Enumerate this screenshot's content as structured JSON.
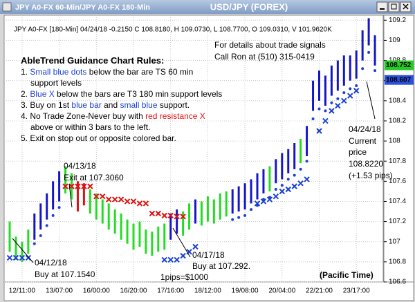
{
  "chart_data": {
    "type": "ohlc",
    "window_title": "JPY A0-FX 60-Min/JPY A0-FX 180-Min",
    "title": "USD/JPY (FOREX)",
    "info_line": "JPY A0-FX [180-Min] 04/24/18  -0.2150 C 108.8180, H 109.0730, L 108.7700, O 109.0310, V 101.9620K",
    "contact": [
      "For details about trade signals",
      "Call Ron at (510) 315-0419"
    ],
    "annotations": {
      "exit": [
        "04/13/18",
        "Exit at 107.3060"
      ],
      "buy1": [
        "04/12/18",
        "Buy at 107.1540"
      ],
      "buy2": [
        "04/17/18",
        "Buy at 107.292."
      ],
      "pips": "1pips=$1000",
      "current": [
        "04/24/18",
        "Current",
        "price",
        "108.8220",
        "(+1.53 pips)"
      ]
    },
    "timezone": "(Pacific Time)",
    "categories": [
      null,
      null,
      "12/11:00",
      null,
      null,
      null,
      null,
      null,
      "13/07:00",
      null,
      null,
      null,
      null,
      null,
      "16/00:00",
      null,
      null,
      null,
      null,
      null,
      "16/20:00",
      null,
      null,
      null,
      null,
      null,
      "17/16:00",
      null,
      null,
      null,
      null,
      null,
      "18/12:00",
      null,
      null,
      null,
      null,
      null,
      "19/08:00",
      null,
      null,
      null,
      null,
      null,
      "20/04:00",
      null,
      null,
      null,
      null,
      null,
      "22/21:00",
      null,
      null,
      null,
      null,
      null,
      "23/17:00",
      null,
      null,
      null
    ],
    "high": [
      107.2,
      107.05,
      107.0,
      107.12,
      107.28,
      107.38,
      107.48,
      107.6,
      107.7,
      107.75,
      107.68,
      107.6,
      107.58,
      107.52,
      107.48,
      107.42,
      107.38,
      107.32,
      107.28,
      107.22,
      107.18,
      107.2,
      107.12,
      107.1,
      107.15,
      107.18,
      107.28,
      107.32,
      107.3,
      107.38,
      107.42,
      107.4,
      107.45,
      107.42,
      107.48,
      107.5,
      107.52,
      107.55,
      107.58,
      107.62,
      107.68,
      107.72,
      107.75,
      107.82,
      107.88,
      107.92,
      107.98,
      108.02,
      108.15,
      108.6,
      108.7,
      108.65,
      108.75,
      108.8,
      108.85,
      108.85,
      108.9,
      109.1,
      109.22,
      109.05
    ],
    "low": [
      106.9,
      106.82,
      106.8,
      106.88,
      107.02,
      107.12,
      107.22,
      107.32,
      107.4,
      107.48,
      107.42,
      107.3,
      107.36,
      107.28,
      107.22,
      107.18,
      107.12,
      107.08,
      107.02,
      106.98,
      106.92,
      106.95,
      106.88,
      106.86,
      106.9,
      106.92,
      107.02,
      107.08,
      107.06,
      107.12,
      107.18,
      107.16,
      107.2,
      107.18,
      107.22,
      107.25,
      107.28,
      107.3,
      107.32,
      107.38,
      107.42,
      107.48,
      107.5,
      107.58,
      107.62,
      107.68,
      107.72,
      107.78,
      107.85,
      108.3,
      108.4,
      108.35,
      108.45,
      108.5,
      108.55,
      108.6,
      108.62,
      108.8,
      108.95,
      108.75
    ],
    "bar_colors": [
      "#22dd22",
      "#22dd22",
      "#22dd22",
      "#22dd22",
      "#1515c8",
      "#1515c8",
      "#1515c8",
      "#1515c8",
      "#1515c8",
      "#22dd22",
      "#22dd22",
      "#e01010",
      "#e01010",
      "#22dd22",
      "#22dd22",
      "#22dd22",
      "#22dd22",
      "#22dd22",
      "#22dd22",
      "#22dd22",
      "#22dd22",
      "#22dd22",
      "#22dd22",
      "#22dd22",
      "#22dd22",
      "#22dd22",
      "#1515c8",
      "#1515c8",
      "#22dd22",
      "#22dd22",
      "#1515c8",
      "#22dd22",
      "#22dd22",
      "#22dd22",
      "#22dd22",
      "#22dd22",
      "#1515c8",
      "#1515c8",
      "#1515c8",
      "#1515c8",
      "#1515c8",
      "#1515c8",
      "#22dd22",
      "#1515c8",
      "#1515c8",
      "#1515c8",
      "#1515c8",
      "#22dd22",
      "#1515c8",
      "#1515c8",
      "#1515c8",
      "#1515c8",
      "#1515c8",
      "#1515c8",
      "#1515c8",
      "#1515c8",
      "#1515c8",
      "#1515c8",
      "#1515c8",
      "#1515c8"
    ],
    "markers": [
      {
        "shape": "dot",
        "color": "#1a3fd6",
        "values": [
          null,
          null,
          null,
          null,
          106.98,
          107.06,
          107.16,
          107.26,
          107.34,
          null,
          null,
          null,
          null,
          null,
          null,
          null,
          null,
          null,
          null,
          null,
          null,
          null,
          null,
          null,
          null,
          null,
          null,
          null,
          null,
          null,
          null,
          null,
          null,
          null,
          null,
          null,
          107.22,
          107.24,
          107.26,
          107.32,
          107.36,
          107.42,
          107.44,
          107.52,
          107.56,
          107.62,
          107.66,
          107.72,
          107.8,
          108.22,
          108.32,
          108.3,
          108.38,
          108.42,
          108.48,
          108.52,
          108.55,
          108.72,
          108.88,
          108.7
        ]
      },
      {
        "shape": "x",
        "color": "#1a3fd6",
        "values": [
          106.84,
          106.84,
          106.84,
          106.84,
          null,
          null,
          null,
          null,
          null,
          null,
          null,
          null,
          null,
          null,
          null,
          null,
          null,
          null,
          null,
          null,
          null,
          null,
          null,
          null,
          null,
          106.82,
          106.82,
          106.82,
          106.86,
          106.9,
          106.95,
          null,
          null,
          null,
          null,
          null,
          null,
          null,
          null,
          null,
          107.38,
          107.4,
          107.42,
          107.45,
          107.5,
          107.52,
          107.55,
          107.58,
          107.62,
          null,
          108.1,
          108.2,
          108.3,
          108.35,
          108.4,
          108.45,
          108.5,
          null,
          null,
          null
        ]
      },
      {
        "shape": "x",
        "color": "#e01010",
        "values": [
          null,
          null,
          null,
          null,
          null,
          null,
          null,
          null,
          null,
          107.55,
          107.55,
          107.55,
          107.55,
          107.55,
          107.45,
          107.45,
          107.42,
          107.42,
          107.42,
          107.4,
          107.4,
          107.38,
          107.38,
          107.28,
          107.28,
          107.26,
          107.26,
          107.25,
          107.25,
          null,
          null,
          null,
          null,
          null,
          null,
          null,
          null,
          null,
          null,
          null,
          null,
          null,
          null,
          null,
          null,
          null,
          null,
          null,
          null,
          null,
          null,
          null,
          null,
          null,
          null,
          null,
          null,
          null,
          null,
          null
        ]
      }
    ],
    "price_tags": [
      {
        "value": 108.752,
        "color": "#22cc22"
      },
      {
        "value": 108.607,
        "color": "#2a4fd8"
      }
    ],
    "ylim": [
      106.6,
      109.25
    ],
    "yticks": [
      106.6,
      106.8,
      107,
      107.2,
      107.4,
      107.6,
      107.8,
      108,
      108.2,
      108.4,
      108.6,
      108.8,
      109,
      109.2
    ],
    "grid": true
  },
  "rules": {
    "title": "AbleTrend Guidance Chart Rules:",
    "items": [
      [
        "1. ",
        "Small blue dots",
        " below the bar are TS 60 min",
        "support levels"
      ],
      [
        "2. ",
        "Blue X",
        " below the bars are T3 180 min support levels"
      ],
      [
        "3. Buy on 1st ",
        "blue bar",
        " and ",
        "small blue",
        " support."
      ],
      [
        "4. No Trade Zone-Never buy with ",
        "red resistance X",
        "above or within 3 bars to the left."
      ],
      [
        "5. Exit on stop out or opposite colored bar."
      ]
    ]
  }
}
